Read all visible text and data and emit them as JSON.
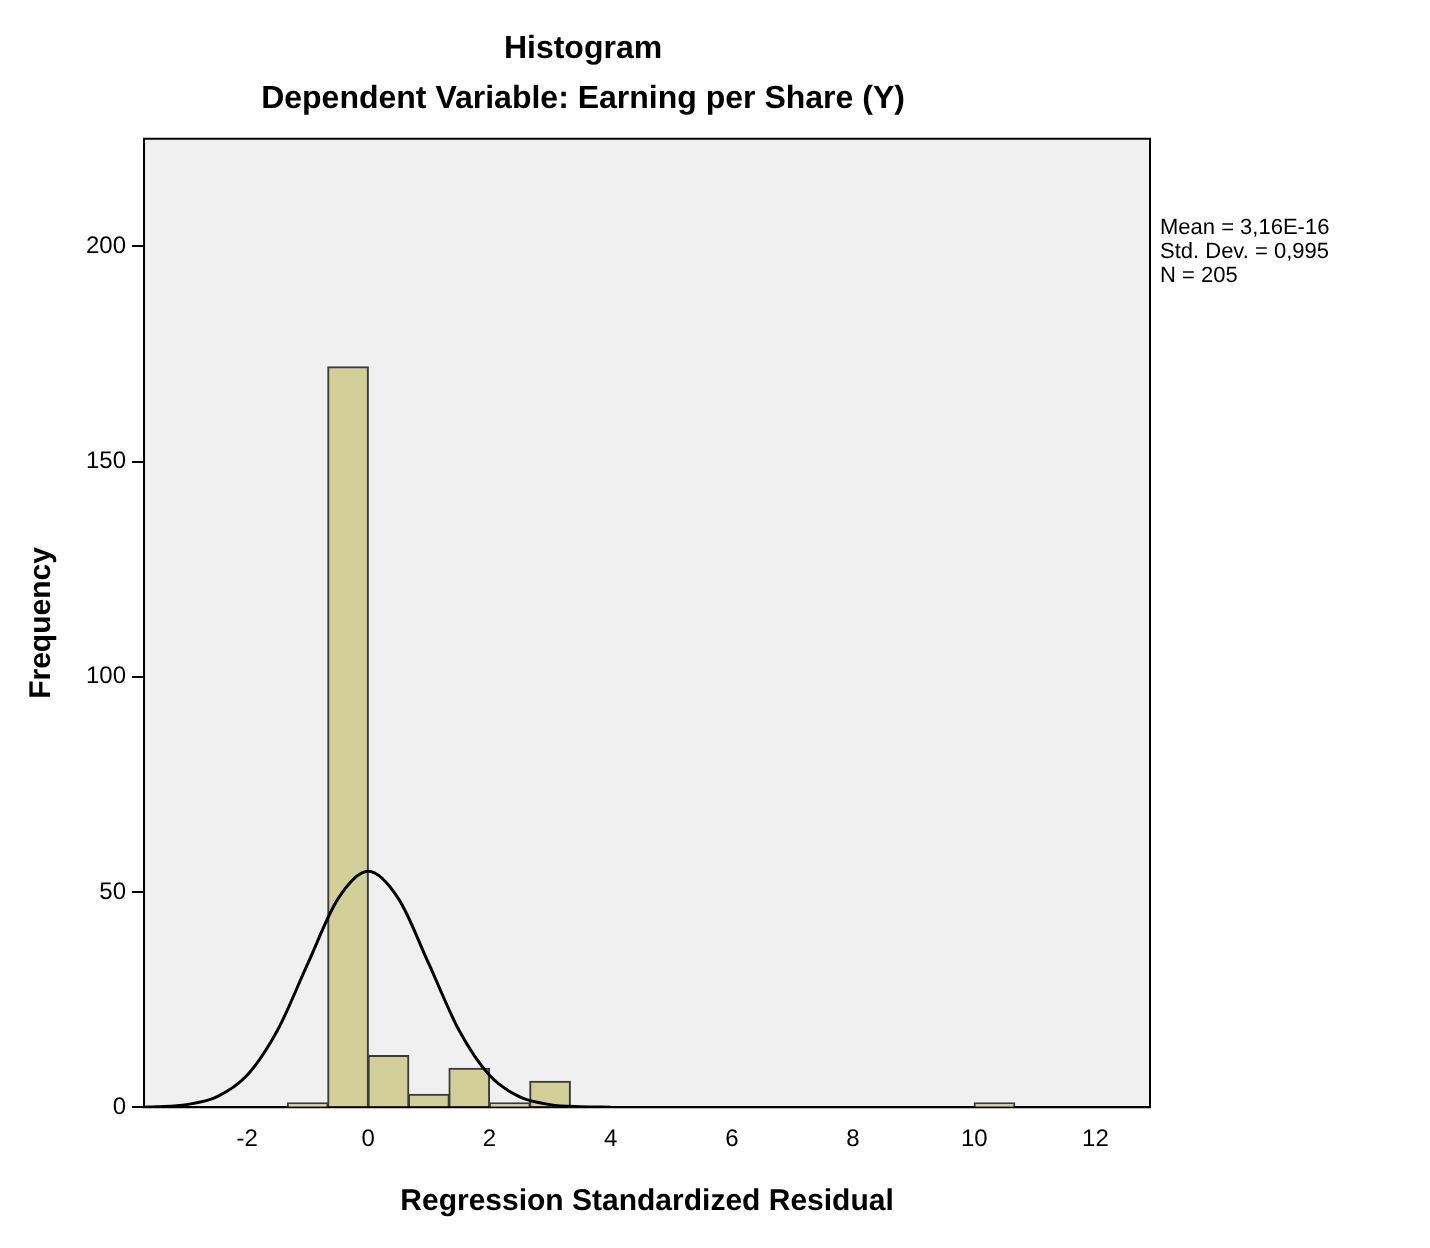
{
  "chart_data": {
    "type": "histogram",
    "title": "Histogram",
    "subtitle": "Dependent Variable: Earning per Share (Y)",
    "xlabel": "Regression Standardized Residual",
    "ylabel": "Frequency",
    "bins": [
      -1.333,
      -0.667,
      0,
      0.667,
      1.333,
      2,
      2.667,
      3.333,
      4,
      4.667,
      5.333,
      6,
      6.667,
      7.333,
      8,
      8.667,
      9.333,
      10,
      10.667
    ],
    "values": [
      1,
      172,
      12,
      3,
      9,
      1,
      6,
      0,
      0,
      0,
      0,
      0,
      0,
      0,
      0,
      0,
      0,
      1
    ],
    "color": "#d3cf98",
    "series": [
      {
        "type": "line",
        "color": "#000000",
        "x": [
          -3.7,
          -3.5,
          -3,
          -2.5,
          -2,
          -1.5,
          -1,
          -0.5,
          0,
          0.5,
          1,
          1.5,
          2,
          2.5,
          3,
          3.5,
          4
        ],
        "values": [
          0,
          0.1,
          0.6,
          2.4,
          7.4,
          17.8,
          33.3,
          48.4,
          54.8,
          48.4,
          33.3,
          17.8,
          7.4,
          2.4,
          0.6,
          0.1,
          0
        ]
      }
    ],
    "xlim": [
      -3.7,
      12.9
    ],
    "xticks": [
      -2,
      0,
      2,
      4,
      6,
      8,
      10,
      12
    ],
    "ylim": [
      0,
      225
    ],
    "yticks": [
      0,
      50,
      100,
      150,
      200
    ],
    "grid": false,
    "legend": false,
    "marker": "none",
    "annotations": [
      "Mean = 3,16E-16",
      "Std. Dev. = 0,995",
      "N = 205"
    ]
  }
}
